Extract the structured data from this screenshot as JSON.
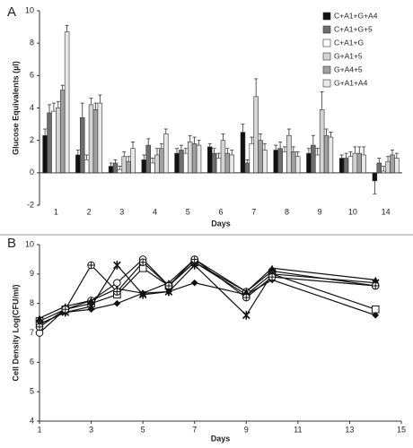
{
  "chart_data": [
    {
      "type": "bar",
      "panel_label": "A",
      "x_label": "Days",
      "y_label": "Glucose Equivalents (µl)",
      "categories": [
        "1",
        "2",
        "3",
        "4",
        "5",
        "6",
        "7",
        "8",
        "9",
        "10",
        "14"
      ],
      "ylim": [
        -2,
        10
      ],
      "yticks": [
        -2,
        0,
        2,
        4,
        6,
        8,
        10
      ],
      "legend": "upper right",
      "series": [
        {
          "name": "C+A1+G+A4",
          "color": "#111111",
          "values": [
            2.3,
            1.1,
            0.4,
            0.8,
            1.2,
            1.6,
            2.5,
            1.4,
            1.2,
            0.9,
            -0.5
          ],
          "errors": [
            0.4,
            0.3,
            0.2,
            0.3,
            0.3,
            0.2,
            0.5,
            0.3,
            0.3,
            0.2,
            0.8
          ]
        },
        {
          "name": "C+A1+G+5",
          "color": "#6e6e6e",
          "values": [
            3.7,
            3.4,
            0.6,
            1.7,
            1.4,
            1.2,
            0.6,
            1.5,
            1.7,
            0.9,
            0.6
          ],
          "errors": [
            0.5,
            0.9,
            0.2,
            0.4,
            0.3,
            0.3,
            0.2,
            0.4,
            0.6,
            0.3,
            0.3
          ]
        },
        {
          "name": "C+A1+G",
          "color": "#ffffff",
          "values": [
            3.8,
            0.8,
            0.2,
            0.6,
            1.2,
            0.9,
            1.8,
            1.3,
            1.1,
            1.0,
            0.1
          ],
          "errors": [
            0.5,
            0.3,
            0.2,
            0.3,
            0.3,
            0.3,
            0.4,
            0.3,
            0.4,
            0.3,
            0.3
          ]
        },
        {
          "name": "G+A1+5",
          "color": "#d4d4d4",
          "values": [
            4.0,
            4.2,
            1.0,
            1.1,
            1.9,
            2.0,
            4.7,
            2.3,
            3.9,
            1.2,
            0.7
          ],
          "errors": [
            0.4,
            0.4,
            0.3,
            0.4,
            0.4,
            0.4,
            1.1,
            0.4,
            1.1,
            0.4,
            0.3
          ]
        },
        {
          "name": "G+A4+5",
          "color": "#a0a0a0",
          "values": [
            5.1,
            3.9,
            0.7,
            1.5,
            1.8,
            1.2,
            2.0,
            1.3,
            2.3,
            1.2,
            1.1
          ],
          "errors": [
            0.3,
            0.4,
            0.3,
            0.3,
            0.4,
            0.3,
            0.4,
            0.3,
            0.4,
            0.4,
            0.3
          ]
        },
        {
          "name": "G+A1+A4",
          "color": "#e8e8e8",
          "values": [
            8.7,
            4.3,
            1.5,
            2.4,
            1.7,
            1.1,
            1.4,
            1.0,
            2.2,
            1.1,
            0.9
          ],
          "errors": [
            0.4,
            0.5,
            0.4,
            0.3,
            0.3,
            0.3,
            0.4,
            0.3,
            0.3,
            0.5,
            0.3
          ]
        }
      ]
    },
    {
      "type": "line",
      "panel_label": "B",
      "x_label": "Days",
      "y_label": "Cell Density Log(CFU/ml)",
      "x": [
        1,
        2,
        3,
        4,
        5,
        6,
        7,
        9,
        10,
        14
      ],
      "xlim": [
        1,
        15
      ],
      "xticks": [
        1,
        3,
        5,
        7,
        9,
        11,
        13,
        15
      ],
      "ylim": [
        4,
        10
      ],
      "yticks": [
        4,
        5,
        6,
        7,
        8,
        9,
        10
      ],
      "series": [
        {
          "color": "#111111",
          "marker": "diamond",
          "values": [
            7.3,
            7.7,
            7.8,
            8.0,
            8.35,
            8.4,
            8.7,
            8.3,
            8.8,
            7.6
          ]
        },
        {
          "color": "#111111",
          "marker": "square",
          "values": [
            7.4,
            7.8,
            8.0,
            8.3,
            9.2,
            8.6,
            9.4,
            8.3,
            9.0,
            7.8
          ]
        },
        {
          "color": "#111111",
          "marker": "circle",
          "values": [
            7.0,
            7.8,
            8.1,
            8.7,
            9.5,
            8.6,
            9.4,
            8.4,
            9.1,
            8.6
          ]
        },
        {
          "color": "#111111",
          "marker": "triangle",
          "values": [
            7.5,
            7.9,
            8.1,
            8.5,
            8.35,
            8.7,
            9.5,
            8.4,
            9.2,
            8.8
          ]
        },
        {
          "color": "#111111",
          "marker": "star",
          "values": [
            7.3,
            7.7,
            7.9,
            9.3,
            8.3,
            8.4,
            9.3,
            7.6,
            9.0,
            8.7
          ]
        },
        {
          "color": "#111111",
          "marker": "cross",
          "values": [
            7.2,
            7.8,
            9.3,
            8.4,
            9.4,
            8.6,
            9.5,
            8.2,
            8.9,
            8.6
          ]
        }
      ]
    }
  ]
}
